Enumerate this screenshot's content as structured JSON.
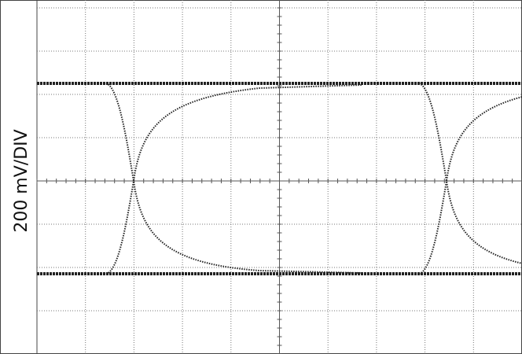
{
  "scope": {
    "vertical_scale": "200 mV/DIV"
  }
}
